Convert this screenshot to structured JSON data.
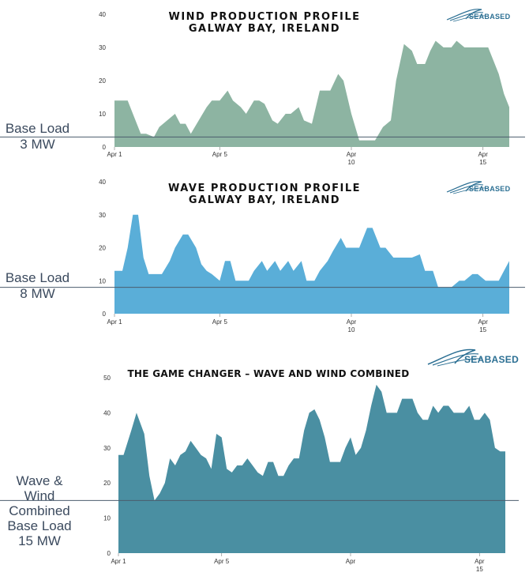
{
  "logo_text": "SEABASED",
  "charts": [
    {
      "key": "wind",
      "title_line1": "WIND PRODUCTION PROFILE",
      "title_line2": "GALWAY BAY, IRELAND",
      "base_label_line1": "Base Load",
      "base_label_line2": "3 MW",
      "color": "#8db4a2",
      "baseline_value": 3
    },
    {
      "key": "wave",
      "title_line1": "WAVE PRODUCTION PROFILE",
      "title_line2": "GALWAY BAY, IRELAND",
      "base_label_line1": "Base Load",
      "base_label_line2": "8 MW",
      "color": "#5aaed8",
      "baseline_value": 8
    },
    {
      "key": "combined",
      "title_line1": "THE GAME CHANGER – WAVE AND WIND COMBINED",
      "title_line2": "",
      "base_label_line1": "Wave & Wind",
      "base_label_line2": "Combined",
      "base_label_line3": "Base Load",
      "base_label_line4": "15 MW",
      "color": "#4a8fa2",
      "baseline_value": 15
    }
  ],
  "chart_data": [
    {
      "type": "area",
      "title": "WIND PRODUCTION PROFILE GALWAY BAY, IRELAND",
      "ylim": [
        0,
        40
      ],
      "y_ticks": [
        0,
        10,
        20,
        30,
        40
      ],
      "x_ticks": [
        {
          "x": 1,
          "line1": "Apr 1",
          "line2": ""
        },
        {
          "x": 5,
          "line1": "Apr 5",
          "line2": ""
        },
        {
          "x": 10,
          "line1": "Apr",
          "line2": "10"
        },
        {
          "x": 15,
          "line1": "Apr",
          "line2": "15"
        }
      ],
      "xlim": [
        1,
        16
      ],
      "x": [
        1,
        1.5,
        1.7,
        2,
        2.2,
        2.5,
        2.7,
        3,
        3.3,
        3.5,
        3.7,
        3.9,
        4.2,
        4.5,
        4.7,
        5,
        5.3,
        5.5,
        5.8,
        6,
        6.3,
        6.5,
        6.7,
        7,
        7.2,
        7.5,
        7.7,
        8,
        8.2,
        8.5,
        8.8,
        9,
        9.2,
        9.5,
        9.7,
        10,
        10.3,
        10.6,
        10.9,
        11.2,
        11.5,
        11.7,
        12,
        12.3,
        12.5,
        12.8,
        13,
        13.2,
        13.5,
        13.8,
        14,
        14.3,
        14.6,
        14.9,
        15.2,
        15.4,
        15.6,
        15.8,
        16
      ],
      "values": [
        14,
        14,
        10,
        4,
        4,
        3,
        6,
        8,
        10,
        7,
        7,
        4,
        8,
        12,
        14,
        14,
        17,
        14,
        12,
        10,
        14,
        14,
        13,
        8,
        7,
        10,
        10,
        12,
        8,
        7,
        17,
        17,
        17,
        22,
        20,
        10,
        2,
        2,
        2,
        6,
        8,
        20,
        31,
        29,
        25,
        25,
        29,
        32,
        30,
        30,
        32,
        30,
        30,
        30,
        30,
        26,
        22,
        16,
        12
      ]
    },
    {
      "type": "area",
      "title": "WAVE PRODUCTION PROFILE GALWAY BAY, IRELAND",
      "ylim": [
        0,
        40
      ],
      "y_ticks": [
        0,
        10,
        20,
        30,
        40
      ],
      "x_ticks": [
        {
          "x": 1,
          "line1": "Apr 1",
          "line2": ""
        },
        {
          "x": 5,
          "line1": "Apr 5",
          "line2": ""
        },
        {
          "x": 10,
          "line1": "Apr",
          "line2": "10"
        },
        {
          "x": 15,
          "line1": "Apr",
          "line2": "15"
        }
      ],
      "xlim": [
        1,
        16
      ],
      "x": [
        1,
        1.3,
        1.5,
        1.7,
        1.9,
        2.1,
        2.3,
        2.6,
        2.8,
        3.1,
        3.3,
        3.6,
        3.8,
        4.1,
        4.3,
        4.5,
        4.7,
        5,
        5.2,
        5.4,
        5.6,
        5.9,
        6.1,
        6.3,
        6.6,
        6.8,
        7.1,
        7.3,
        7.6,
        7.8,
        8.1,
        8.3,
        8.6,
        8.8,
        9.1,
        9.3,
        9.6,
        9.8,
        10.1,
        10.3,
        10.6,
        10.8,
        11.1,
        11.3,
        11.6,
        11.8,
        12.1,
        12.3,
        12.6,
        12.8,
        13.1,
        13.3,
        13.6,
        13.8,
        14.1,
        14.3,
        14.6,
        14.8,
        15.1,
        15.3,
        15.6,
        15.8,
        16
      ],
      "values": [
        13,
        13,
        20,
        30,
        30,
        17,
        12,
        12,
        12,
        16,
        20,
        24,
        24,
        20,
        15,
        13,
        12,
        10,
        16,
        16,
        10,
        10,
        10,
        13,
        16,
        13,
        16,
        13,
        16,
        13,
        16,
        10,
        10,
        13,
        16,
        19,
        23,
        20,
        20,
        20,
        26,
        26,
        20,
        20,
        17,
        17,
        17,
        17,
        18,
        13,
        13,
        8,
        8,
        8,
        10,
        10,
        12,
        12,
        10,
        10,
        10,
        13,
        16
      ]
    },
    {
      "type": "area",
      "title": "THE GAME CHANGER – WAVE AND WIND COMBINED",
      "ylim": [
        0,
        50
      ],
      "y_ticks": [
        0,
        10,
        20,
        30,
        40,
        50
      ],
      "x_ticks": [
        {
          "x": 1,
          "line1": "Apr 1",
          "line2": ""
        },
        {
          "x": 5,
          "line1": "Apr 5",
          "line2": ""
        },
        {
          "x": 10,
          "line1": "Apr",
          "line2": ""
        },
        {
          "x": 15,
          "line1": "Apr",
          "line2": "15"
        }
      ],
      "xlim": [
        1,
        16
      ],
      "x": [
        1,
        1.2,
        1.5,
        1.7,
        2,
        2.2,
        2.4,
        2.6,
        2.8,
        3,
        3.2,
        3.4,
        3.6,
        3.8,
        4,
        4.2,
        4.4,
        4.6,
        4.8,
        5,
        5.2,
        5.4,
        5.6,
        5.8,
        6,
        6.2,
        6.4,
        6.6,
        6.8,
        7,
        7.2,
        7.4,
        7.6,
        7.8,
        8,
        8.2,
        8.4,
        8.6,
        8.8,
        9,
        9.2,
        9.4,
        9.6,
        9.8,
        10,
        10.2,
        10.4,
        10.6,
        10.8,
        11,
        11.2,
        11.4,
        11.6,
        11.8,
        12,
        12.2,
        12.4,
        12.6,
        12.8,
        13,
        13.2,
        13.4,
        13.6,
        13.8,
        14,
        14.2,
        14.4,
        14.6,
        14.8,
        15,
        15.2,
        15.4,
        15.6,
        15.8,
        16
      ],
      "values": [
        28,
        28,
        35,
        40,
        34,
        22,
        15,
        17,
        20,
        27,
        25,
        28,
        29,
        32,
        30,
        28,
        27,
        24,
        34,
        33,
        24,
        23,
        25,
        25,
        27,
        25,
        23,
        22,
        26,
        26,
        22,
        22,
        25,
        27,
        27,
        35,
        40,
        41,
        38,
        33,
        26,
        26,
        26,
        30,
        33,
        28,
        30,
        35,
        42,
        48,
        46,
        40,
        40,
        40,
        44,
        44,
        44,
        40,
        38,
        38,
        42,
        40,
        42,
        42,
        40,
        40,
        40,
        42,
        38,
        38,
        40,
        38,
        30,
        29,
        29
      ]
    }
  ]
}
